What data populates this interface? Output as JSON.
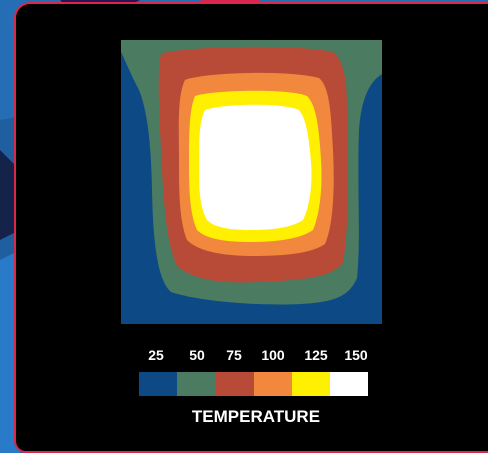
{
  "chart_data": {
    "type": "heatmap",
    "title": "",
    "legend_title": "TEMPERATURE",
    "levels": [
      25,
      50,
      75,
      100,
      125,
      150
    ],
    "tick_labels": [
      "25",
      "50",
      "75",
      "100",
      "125",
      "150"
    ],
    "colors": [
      "#0d4a85",
      "#4b7c61",
      "#b84a38",
      "#f2873e",
      "#ffef00",
      "#ffffff"
    ]
  }
}
